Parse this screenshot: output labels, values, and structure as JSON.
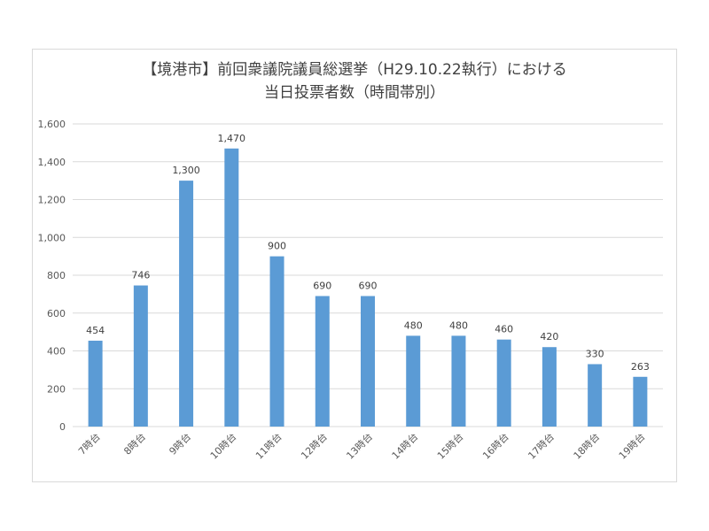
{
  "chart_data": {
    "type": "bar",
    "title_lines": [
      "【境港市】前回衆議院議員総選挙（H29.10.22執行）における",
      "当日投票者数（時間帯別）"
    ],
    "categories": [
      "7時台",
      "8時台",
      "9時台",
      "10時台",
      "11時台",
      "12時台",
      "13時台",
      "14時台",
      "15時台",
      "16時台",
      "17時台",
      "18時台",
      "19時台"
    ],
    "values": [
      454,
      746,
      1300,
      1470,
      900,
      690,
      690,
      480,
      480,
      460,
      420,
      330,
      263
    ],
    "data_labels": [
      "454",
      "746",
      "1,300",
      "1,470",
      "900",
      "690",
      "690",
      "480",
      "480",
      "460",
      "420",
      "330",
      "263"
    ],
    "y_ticks": [
      0,
      200,
      400,
      600,
      800,
      1000,
      1200,
      1400,
      1600
    ],
    "y_tick_labels": [
      "0",
      "200",
      "400",
      "600",
      "800",
      "1,000",
      "1,200",
      "1,400",
      "1,600"
    ],
    "ylim": [
      0,
      1600
    ],
    "grid": true,
    "legend": "none",
    "bar_color": "#5b9bd5",
    "grid_color": "#d9d9d9"
  }
}
